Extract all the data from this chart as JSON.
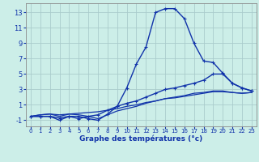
{
  "title": "Graphe des températures (°c)",
  "background_color": "#cceee8",
  "grid_color": "#aacccc",
  "line_color": "#1133aa",
  "x_ticks": [
    0,
    1,
    2,
    3,
    4,
    5,
    6,
    7,
    8,
    9,
    10,
    11,
    12,
    13,
    14,
    15,
    16,
    17,
    18,
    19,
    20,
    21,
    22,
    23
  ],
  "y_ticks": [
    -1,
    1,
    3,
    5,
    7,
    9,
    11,
    13
  ],
  "xlim": [
    -0.5,
    23.5
  ],
  "ylim": [
    -1.8,
    14.2
  ],
  "line1": [
    -0.5,
    -0.5,
    -0.5,
    -1.0,
    -0.5,
    -0.5,
    -0.8,
    -1.0,
    -0.2,
    0.8,
    3.2,
    6.3,
    8.5,
    13.0,
    13.5,
    13.5,
    12.2,
    9.0,
    6.7,
    6.5,
    5.1,
    3.8,
    3.2,
    2.8
  ],
  "line2": [
    -0.5,
    -0.5,
    -0.5,
    -0.7,
    -0.5,
    -0.8,
    -0.5,
    -0.3,
    0.3,
    0.8,
    1.2,
    1.5,
    2.0,
    2.5,
    3.0,
    3.2,
    3.5,
    3.8,
    4.2,
    5.0,
    5.0,
    3.8,
    3.2,
    2.8
  ],
  "line3": [
    -0.5,
    -0.3,
    -0.2,
    -0.5,
    -0.2,
    -0.3,
    -0.5,
    -0.8,
    -0.3,
    0.2,
    0.5,
    0.8,
    1.2,
    1.5,
    1.8,
    2.0,
    2.2,
    2.5,
    2.6,
    2.8,
    2.8,
    2.6,
    2.5,
    2.6
  ],
  "line4": [
    -0.5,
    -0.3,
    -0.2,
    -0.3,
    -0.2,
    -0.1,
    0.0,
    0.1,
    0.3,
    0.5,
    0.8,
    1.0,
    1.3,
    1.5,
    1.8,
    1.9,
    2.1,
    2.3,
    2.5,
    2.7,
    2.7,
    2.6,
    2.5,
    2.6
  ]
}
